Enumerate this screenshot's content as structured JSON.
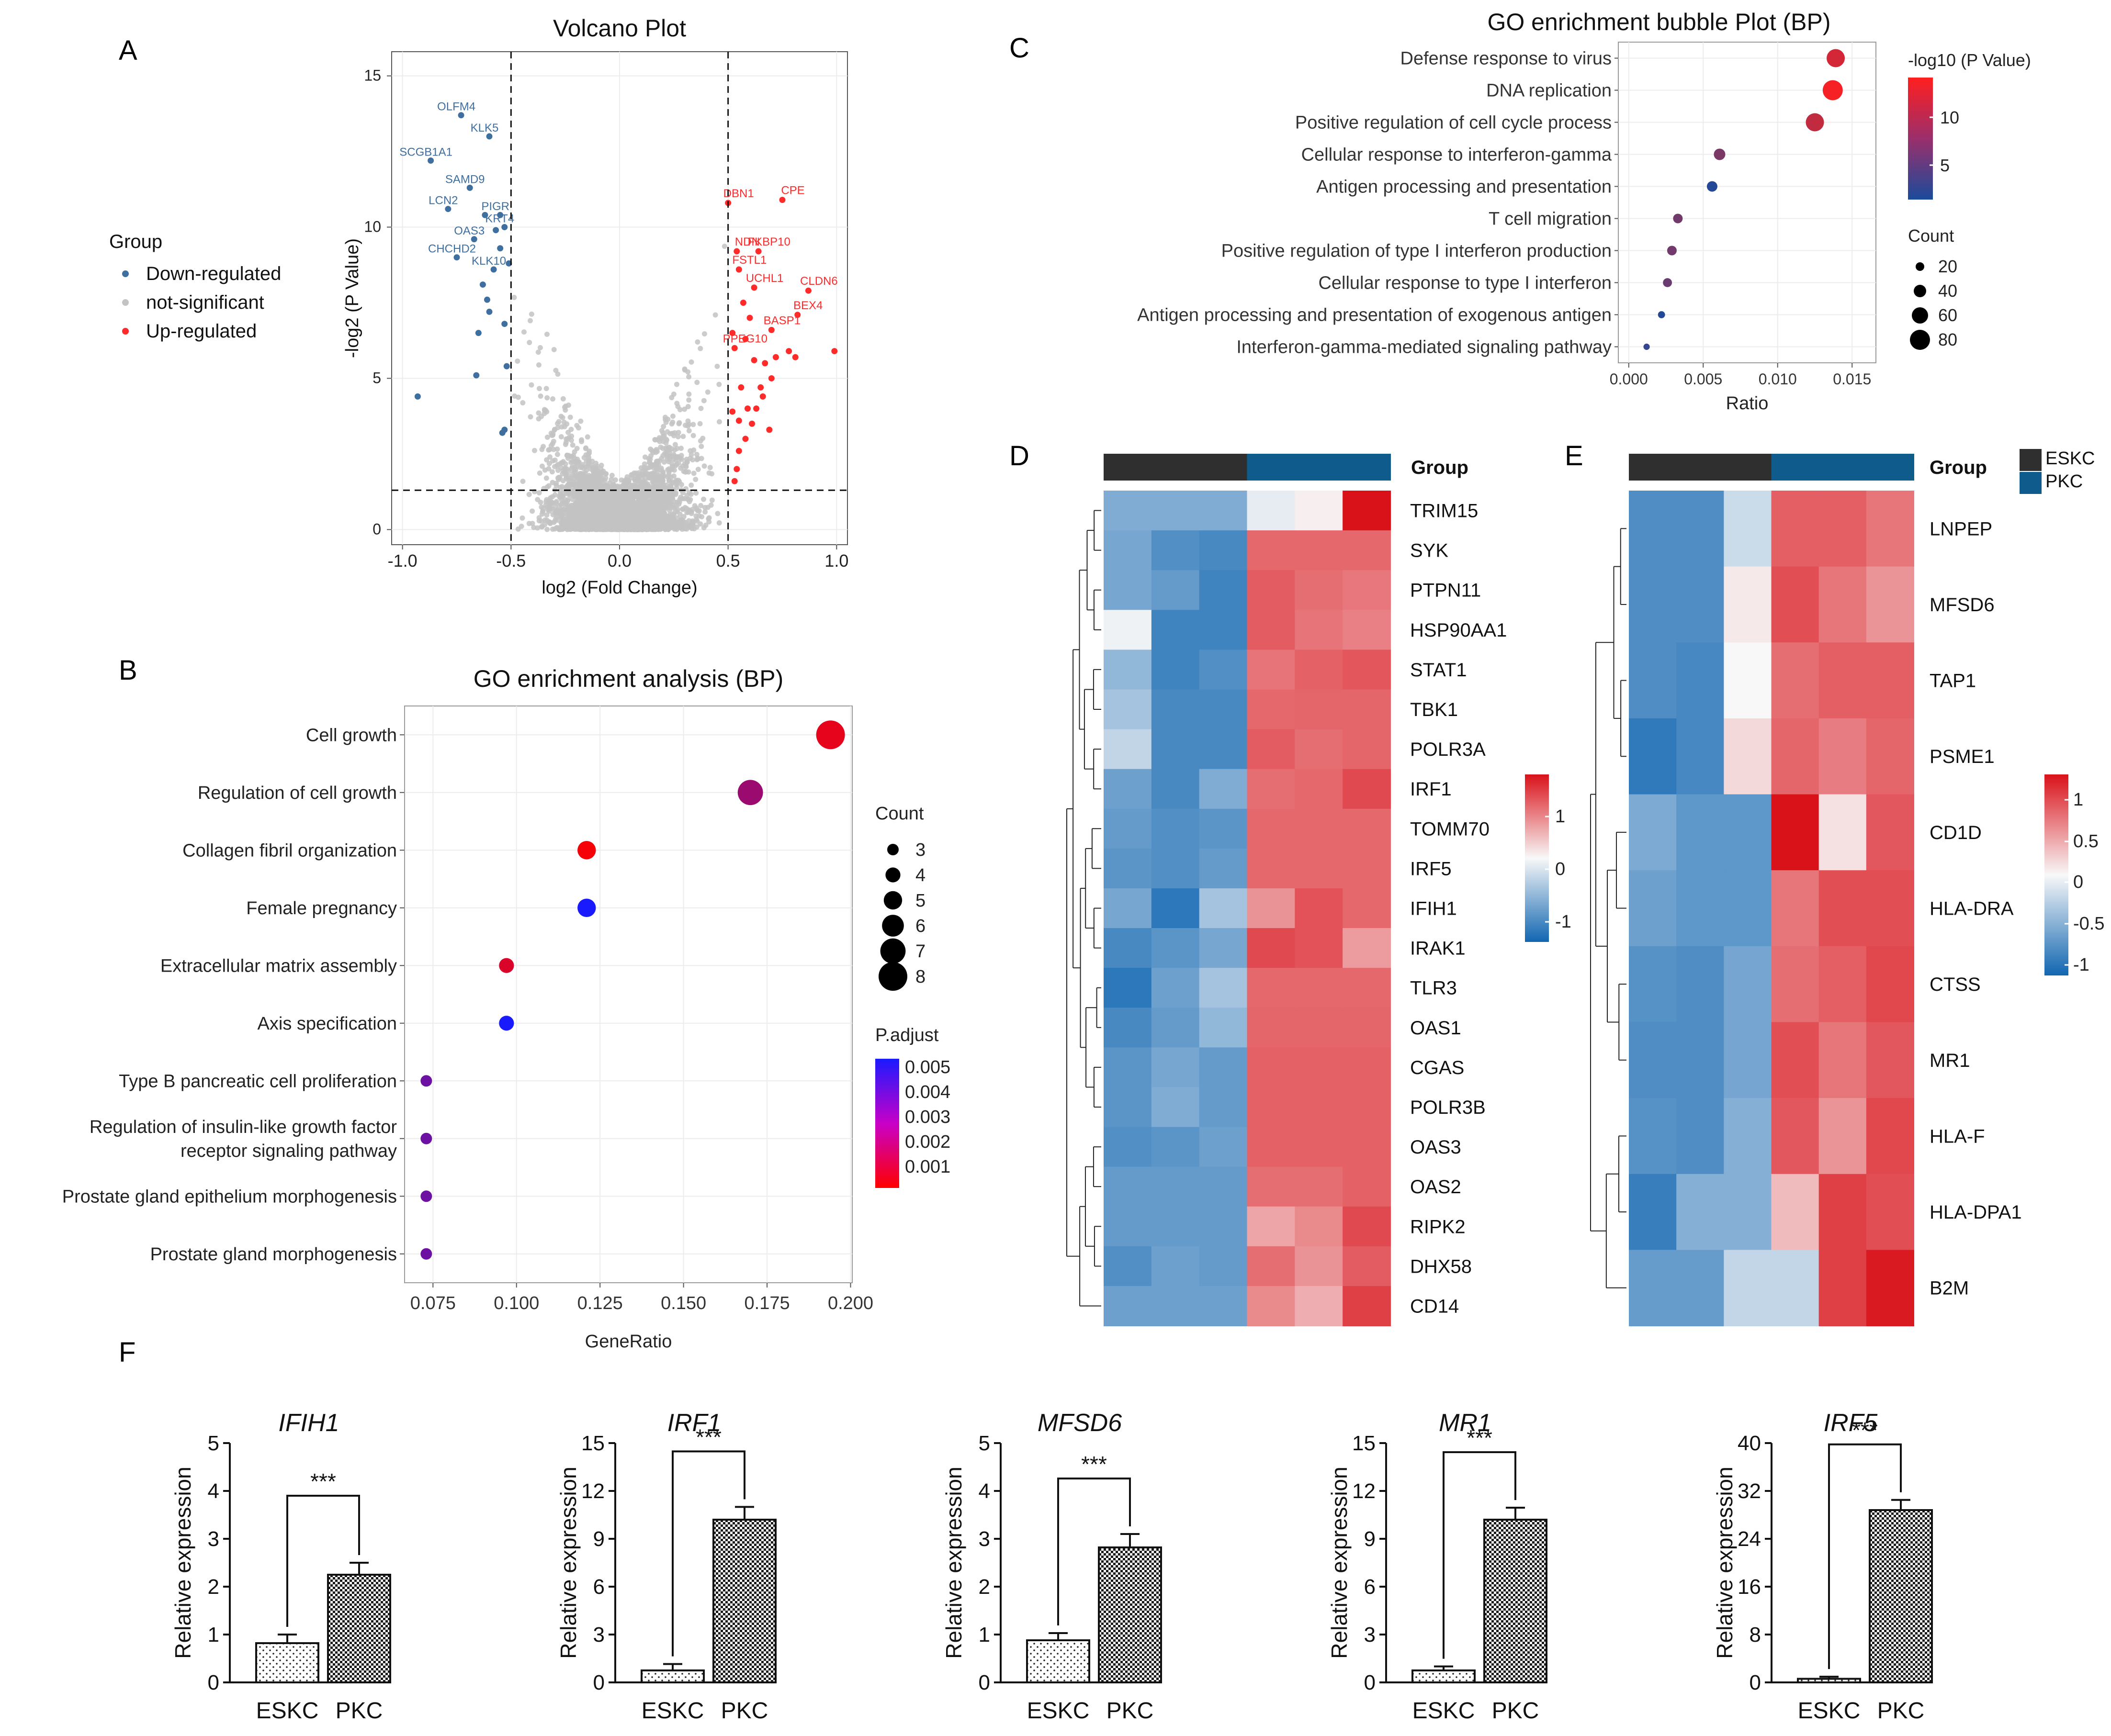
{
  "panel_letters": [
    "A",
    "B",
    "C",
    "D",
    "E",
    "F"
  ],
  "colors": {
    "down": "#3e6f9f",
    "ns": "#c3c3c3",
    "up": "#ff2b2b",
    "grid_bg": "#ffffff",
    "grid_line": "#ececec",
    "esk": "#2f2f2f",
    "pkc": "#0e5b8c",
    "heat_low": "#1166b1",
    "heat_mid": "#f8f8f8",
    "heat_high": "#d9121a"
  },
  "chart_data": [
    {
      "panel": "A",
      "type": "scatter",
      "title": "Volcano Plot",
      "xlabel": "log2 (Fold Change)",
      "ylabel": "-log2 (P Value)",
      "xlim": [
        -1.05,
        1.05
      ],
      "ylim": [
        -0.5,
        15.8
      ],
      "xticks": [
        "-1.0",
        "-0.5",
        "0.0",
        "0.5",
        "1.0"
      ],
      "yticks": [
        "0",
        "5",
        "10",
        "15"
      ],
      "thresholds": {
        "x": [
          -0.5,
          0.5
        ],
        "y": 1.3
      },
      "legend_title": "Group",
      "legend": [
        "Down-regulated",
        "not-significant",
        "Up-regulated"
      ],
      "down_labeled": [
        {
          "gene": "OLFM4",
          "x": -0.73,
          "y": 13.7
        },
        {
          "gene": "KLK5",
          "x": -0.6,
          "y": 13.0
        },
        {
          "gene": "SCGB1A1",
          "x": -0.87,
          "y": 12.2
        },
        {
          "gene": "SAMD9",
          "x": -0.69,
          "y": 11.3
        },
        {
          "gene": "LCN2",
          "x": -0.79,
          "y": 10.6
        },
        {
          "gene": "PIGR",
          "x": -0.55,
          "y": 10.4
        },
        {
          "gene": "KRT4",
          "x": -0.53,
          "y": 10.0
        },
        {
          "gene": "OAS3",
          "x": -0.67,
          "y": 9.6
        },
        {
          "gene": "CHCHD2",
          "x": -0.75,
          "y": 9.0
        },
        {
          "gene": "KLK10",
          "x": -0.58,
          "y": 8.6
        }
      ],
      "down_points": [
        {
          "x": -0.93,
          "y": 4.4
        },
        {
          "x": -0.65,
          "y": 6.5
        },
        {
          "x": -0.61,
          "y": 7.6
        },
        {
          "x": -0.63,
          "y": 8.1
        },
        {
          "x": -0.53,
          "y": 6.8
        },
        {
          "x": -0.55,
          "y": 9.3
        },
        {
          "x": -0.52,
          "y": 5.4
        },
        {
          "x": -0.54,
          "y": 3.2
        },
        {
          "x": -0.53,
          "y": 3.3
        },
        {
          "x": -0.6,
          "y": 7.2
        },
        {
          "x": -0.57,
          "y": 9.9
        },
        {
          "x": -0.62,
          "y": 10.4
        },
        {
          "x": -0.51,
          "y": 8.8
        },
        {
          "x": -0.66,
          "y": 5.1
        }
      ],
      "up_labeled": [
        {
          "gene": "DBN1",
          "x": 0.5,
          "y": 10.8
        },
        {
          "gene": "CPE",
          "x": 0.75,
          "y": 10.9
        },
        {
          "gene": "NDN",
          "x": 0.54,
          "y": 9.2
        },
        {
          "gene": "FKBP10",
          "x": 0.64,
          "y": 9.2
        },
        {
          "gene": "FSTL1",
          "x": 0.55,
          "y": 8.6
        },
        {
          "gene": "UCHL1",
          "x": 0.62,
          "y": 8.0
        },
        {
          "gene": "CLDN6",
          "x": 0.87,
          "y": 7.9
        },
        {
          "gene": "BEX4",
          "x": 0.82,
          "y": 7.1
        },
        {
          "gene": "BASP1",
          "x": 0.7,
          "y": 6.6
        },
        {
          "gene": "PPEG10",
          "x": 0.53,
          "y": 6.0
        }
      ],
      "up_points": [
        {
          "x": 0.52,
          "y": 3.9
        },
        {
          "x": 0.55,
          "y": 3.6
        },
        {
          "x": 0.58,
          "y": 3.0
        },
        {
          "x": 0.61,
          "y": 3.5
        },
        {
          "x": 0.56,
          "y": 4.7
        },
        {
          "x": 0.63,
          "y": 4.0
        },
        {
          "x": 0.66,
          "y": 4.4
        },
        {
          "x": 0.69,
          "y": 3.3
        },
        {
          "x": 0.72,
          "y": 5.7
        },
        {
          "x": 0.78,
          "y": 5.9
        },
        {
          "x": 0.81,
          "y": 5.7
        },
        {
          "x": 0.99,
          "y": 5.9
        },
        {
          "x": 0.62,
          "y": 5.6
        },
        {
          "x": 0.54,
          "y": 2.0
        },
        {
          "x": 0.53,
          "y": 1.6
        },
        {
          "x": 0.59,
          "y": 4.0
        },
        {
          "x": 0.65,
          "y": 4.7
        },
        {
          "x": 0.58,
          "y": 6.3
        },
        {
          "x": 0.6,
          "y": 7.0
        },
        {
          "x": 0.57,
          "y": 7.5
        },
        {
          "x": 0.67,
          "y": 5.5
        },
        {
          "x": 0.55,
          "y": 2.6
        },
        {
          "x": 0.7,
          "y": 5.0
        },
        {
          "x": 0.52,
          "y": 6.5
        }
      ]
    },
    {
      "panel": "B",
      "type": "scatter",
      "title": "GO enrichment analysis (BP)",
      "xlabel": "GeneRatio",
      "xlim": [
        0.0665,
        0.2005
      ],
      "xticks": [
        "0.075",
        "0.100",
        "0.125",
        "0.150",
        "0.175",
        "0.200"
      ],
      "terms": [
        {
          "term": [
            "Cell growth"
          ],
          "ratio": 0.194,
          "count": 8,
          "padj": 0.0006
        },
        {
          "term": [
            "Regulation of cell growth"
          ],
          "ratio": 0.17,
          "count": 7,
          "padj": 0.0024
        },
        {
          "term": [
            "Collagen fibril organization"
          ],
          "ratio": 0.121,
          "count": 5,
          "padj": 0.0002
        },
        {
          "term": [
            "Female pregnancy"
          ],
          "ratio": 0.121,
          "count": 5,
          "padj": 0.0055
        },
        {
          "term": [
            "Extracellular matrix assembly"
          ],
          "ratio": 0.097,
          "count": 4,
          "padj": 0.0009
        },
        {
          "term": [
            "Axis specification"
          ],
          "ratio": 0.097,
          "count": 4,
          "padj": 0.0055
        },
        {
          "term": [
            "Type B pancreatic cell proliferation"
          ],
          "ratio": 0.073,
          "count": 3,
          "padj": 0.0035
        },
        {
          "term": [
            "Regulation of insulin-like growth factor",
            "receptor signaling pathway"
          ],
          "ratio": 0.073,
          "count": 3,
          "padj": 0.0035
        },
        {
          "term": [
            "Prostate gland epithelium morphogenesis"
          ],
          "ratio": 0.073,
          "count": 3,
          "padj": 0.0035
        },
        {
          "term": [
            "Prostate gland morphogenesis"
          ],
          "ratio": 0.073,
          "count": 3,
          "padj": 0.0035
        }
      ],
      "size_legend_title": "Count",
      "size_legend": [
        "3",
        "4",
        "5",
        "6",
        "7",
        "8"
      ],
      "color_legend_title": "P.adjust",
      "color_legend": [
        "0.005",
        "0.004",
        "0.003",
        "0.002",
        "0.001"
      ]
    },
    {
      "panel": "C",
      "type": "scatter",
      "title": "GO enrichment bubble Plot (BP)",
      "xlabel": "Ratio",
      "xlim": [
        -0.0007,
        0.0166
      ],
      "xticks": [
        "0.000",
        "0.005",
        "0.010",
        "0.015"
      ],
      "terms": [
        {
          "term": "Defense response to virus",
          "ratio": 0.0139,
          "count": 70,
          "logp": 11.5
        },
        {
          "term": "DNA replication",
          "ratio": 0.0137,
          "count": 80,
          "logp": 13.5
        },
        {
          "term": "Positive regulation of cell cycle process",
          "ratio": 0.0125,
          "count": 70,
          "logp": 10.5
        },
        {
          "term": "Cellular response to interferon-gamma",
          "ratio": 0.0061,
          "count": 35,
          "logp": 6.5
        },
        {
          "term": "Antigen processing and presentation",
          "ratio": 0.0056,
          "count": 30,
          "logp": 1.5
        },
        {
          "term": "T cell migration",
          "ratio": 0.0033,
          "count": 25,
          "logp": 6.0
        },
        {
          "term": "Positive regulation of type I interferon production",
          "ratio": 0.0029,
          "count": 25,
          "logp": 6.0
        },
        {
          "term": "Cellular response to type I interferon",
          "ratio": 0.0026,
          "count": 22,
          "logp": 5.5
        },
        {
          "term": "Antigen processing and presentation of exogenous antigen",
          "ratio": 0.0022,
          "count": 12,
          "logp": 1.5
        },
        {
          "term": "Interferon-gamma-mediated signaling pathway",
          "ratio": 0.0012,
          "count": 8,
          "logp": 2.5
        }
      ],
      "color_legend_title": "-log10 (P Value)",
      "color_legend": [
        "10",
        "5"
      ],
      "size_legend_title": "Count",
      "size_legend": [
        "20",
        "40",
        "60",
        "80"
      ]
    },
    {
      "panel": "D",
      "type": "heatmap",
      "group_label": "Group",
      "groups": [
        "ESKC",
        "ESKC",
        "ESKC",
        "PKC",
        "PKC",
        "PKC"
      ],
      "genes": [
        "TRIM15",
        "SYK",
        "PTPN11",
        "HSP90AA1",
        "STAT1",
        "TBK1",
        "POLR3A",
        "IRF1",
        "TOMM70",
        "IRF5",
        "IFIH1",
        "IRAK1",
        "TLR3",
        "OAS1",
        "CGAS",
        "POLR3B",
        "OAS3",
        "OAS2",
        "RIPK2",
        "DHX58",
        "CD14"
      ],
      "values": [
        [
          -0.65,
          -0.65,
          -0.65,
          -0.1,
          0.05,
          1.25
        ],
        [
          -0.7,
          -0.9,
          -0.95,
          0.78,
          0.78,
          0.78
        ],
        [
          -0.7,
          -0.8,
          -1.0,
          0.85,
          0.75,
          0.7
        ],
        [
          -0.05,
          -1.0,
          -1.0,
          0.85,
          0.72,
          0.65
        ],
        [
          -0.55,
          -1.0,
          -0.9,
          0.72,
          0.82,
          0.88
        ],
        [
          -0.45,
          -0.95,
          -0.95,
          0.78,
          0.8,
          0.8
        ],
        [
          -0.3,
          -0.95,
          -0.95,
          0.85,
          0.75,
          0.8
        ],
        [
          -0.75,
          -0.95,
          -0.65,
          0.75,
          0.78,
          0.95
        ],
        [
          -0.8,
          -0.9,
          -0.85,
          0.78,
          0.78,
          0.78
        ],
        [
          -0.85,
          -0.9,
          -0.8,
          0.78,
          0.78,
          0.78
        ],
        [
          -0.7,
          -1.1,
          -0.45,
          0.55,
          0.9,
          0.78
        ],
        [
          -0.95,
          -0.85,
          -0.7,
          0.95,
          0.9,
          0.5
        ],
        [
          -1.1,
          -0.75,
          -0.45,
          0.78,
          0.78,
          0.78
        ],
        [
          -0.95,
          -0.8,
          -0.55,
          0.8,
          0.8,
          0.8
        ],
        [
          -0.85,
          -0.7,
          -0.8,
          0.82,
          0.82,
          0.82
        ],
        [
          -0.85,
          -0.65,
          -0.8,
          0.82,
          0.82,
          0.82
        ],
        [
          -0.9,
          -0.85,
          -0.75,
          0.82,
          0.82,
          0.82
        ],
        [
          -0.8,
          -0.8,
          -0.8,
          0.75,
          0.75,
          0.82
        ],
        [
          -0.8,
          -0.8,
          -0.8,
          0.45,
          0.6,
          0.95
        ],
        [
          -0.9,
          -0.75,
          -0.8,
          0.75,
          0.55,
          0.85
        ],
        [
          -0.75,
          -0.75,
          -0.75,
          0.6,
          0.4,
          1.0
        ]
      ],
      "scale_ticks": [
        "1",
        "0",
        "-1"
      ]
    },
    {
      "panel": "E",
      "type": "heatmap",
      "group_label": "Group",
      "legend": [
        "ESKC",
        "PKC"
      ],
      "groups": [
        "ESKC",
        "ESKC",
        "ESKC",
        "PKC",
        "PKC",
        "PKC"
      ],
      "genes": [
        "LNPEP",
        "MFSD6",
        "TAP1",
        "PSME1",
        "CD1D",
        "HLA-DRA",
        "CTSS",
        "MR1",
        "HLA-F",
        "HLA-DPA1",
        "B2M"
      ],
      "values": [
        [
          -1.1,
          -1.1,
          -0.3,
          1.0,
          1.0,
          0.85
        ],
        [
          -1.1,
          -1.1,
          0.1,
          1.1,
          0.85,
          0.65
        ],
        [
          -1.1,
          -1.15,
          0.0,
          0.9,
          1.0,
          1.0
        ],
        [
          -1.3,
          -1.15,
          0.2,
          0.95,
          0.8,
          0.95
        ],
        [
          -0.8,
          -1.0,
          -1.0,
          1.5,
          0.15,
          1.05
        ],
        [
          -0.9,
          -1.0,
          -1.0,
          0.85,
          1.1,
          1.1
        ],
        [
          -1.05,
          -1.1,
          -0.85,
          0.9,
          1.0,
          1.15
        ],
        [
          -1.1,
          -1.1,
          -0.85,
          1.1,
          0.85,
          1.05
        ],
        [
          -1.05,
          -1.1,
          -0.75,
          1.05,
          0.65,
          1.15
        ],
        [
          -1.25,
          -0.75,
          -0.75,
          0.4,
          1.2,
          1.1
        ],
        [
          -0.95,
          -0.95,
          -0.35,
          -0.35,
          1.2,
          1.45
        ]
      ],
      "scale_ticks": [
        "1",
        "0.5",
        "0",
        "-0.5",
        "-1"
      ]
    },
    {
      "panel": "F",
      "type": "bar",
      "ylabel": "Relative expression",
      "categories": [
        "ESKC",
        "PKC"
      ],
      "significance": "***",
      "charts": [
        {
          "gene": "IFIH1",
          "values": [
            0.82,
            2.25
          ],
          "errors": [
            0.18,
            0.25
          ],
          "ylim": [
            0,
            5
          ],
          "yticks": [
            "0",
            "1",
            "2",
            "3",
            "4",
            "5"
          ]
        },
        {
          "gene": "IRF1",
          "values": [
            0.75,
            10.2
          ],
          "errors": [
            0.4,
            0.8
          ],
          "ylim": [
            0,
            15
          ],
          "yticks": [
            "0",
            "3",
            "6",
            "9",
            "12",
            "15"
          ]
        },
        {
          "gene": "MFSD6",
          "values": [
            0.88,
            2.82
          ],
          "errors": [
            0.15,
            0.28
          ],
          "ylim": [
            0,
            5
          ],
          "yticks": [
            "0",
            "1",
            "2",
            "3",
            "4",
            "5"
          ]
        },
        {
          "gene": "MR1",
          "values": [
            0.75,
            10.2
          ],
          "errors": [
            0.25,
            0.75
          ],
          "ylim": [
            0,
            15
          ],
          "yticks": [
            "0",
            "3",
            "6",
            "9",
            "12",
            "15"
          ]
        },
        {
          "gene": "IRF5",
          "values": [
            0.6,
            28.8
          ],
          "errors": [
            0.35,
            1.7
          ],
          "ylim": [
            0,
            40
          ],
          "yticks": [
            "0",
            "8",
            "16",
            "24",
            "32",
            "40"
          ]
        }
      ]
    }
  ]
}
